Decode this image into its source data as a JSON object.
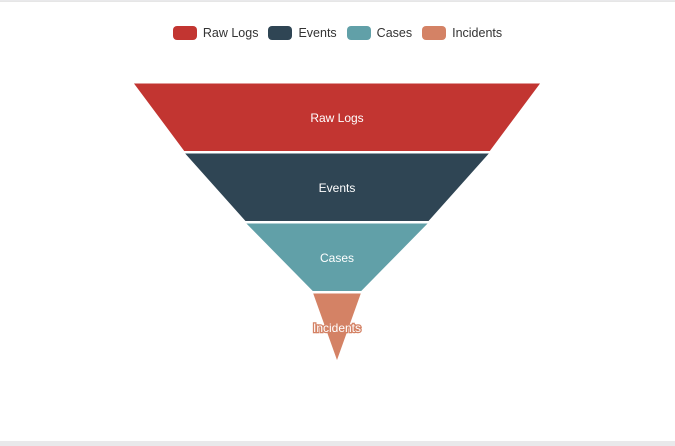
{
  "chart_data": {
    "type": "funnel",
    "categories": [
      "Raw Logs",
      "Events",
      "Cases",
      "Incidents"
    ],
    "values": [
      100,
      75,
      45,
      12
    ],
    "colors": [
      "#c23531",
      "#2f4554",
      "#61a0a8",
      "#d48265"
    ],
    "legend": {
      "position": "top-center",
      "items": [
        "Raw Logs",
        "Events",
        "Cases",
        "Incidents"
      ]
    }
  }
}
